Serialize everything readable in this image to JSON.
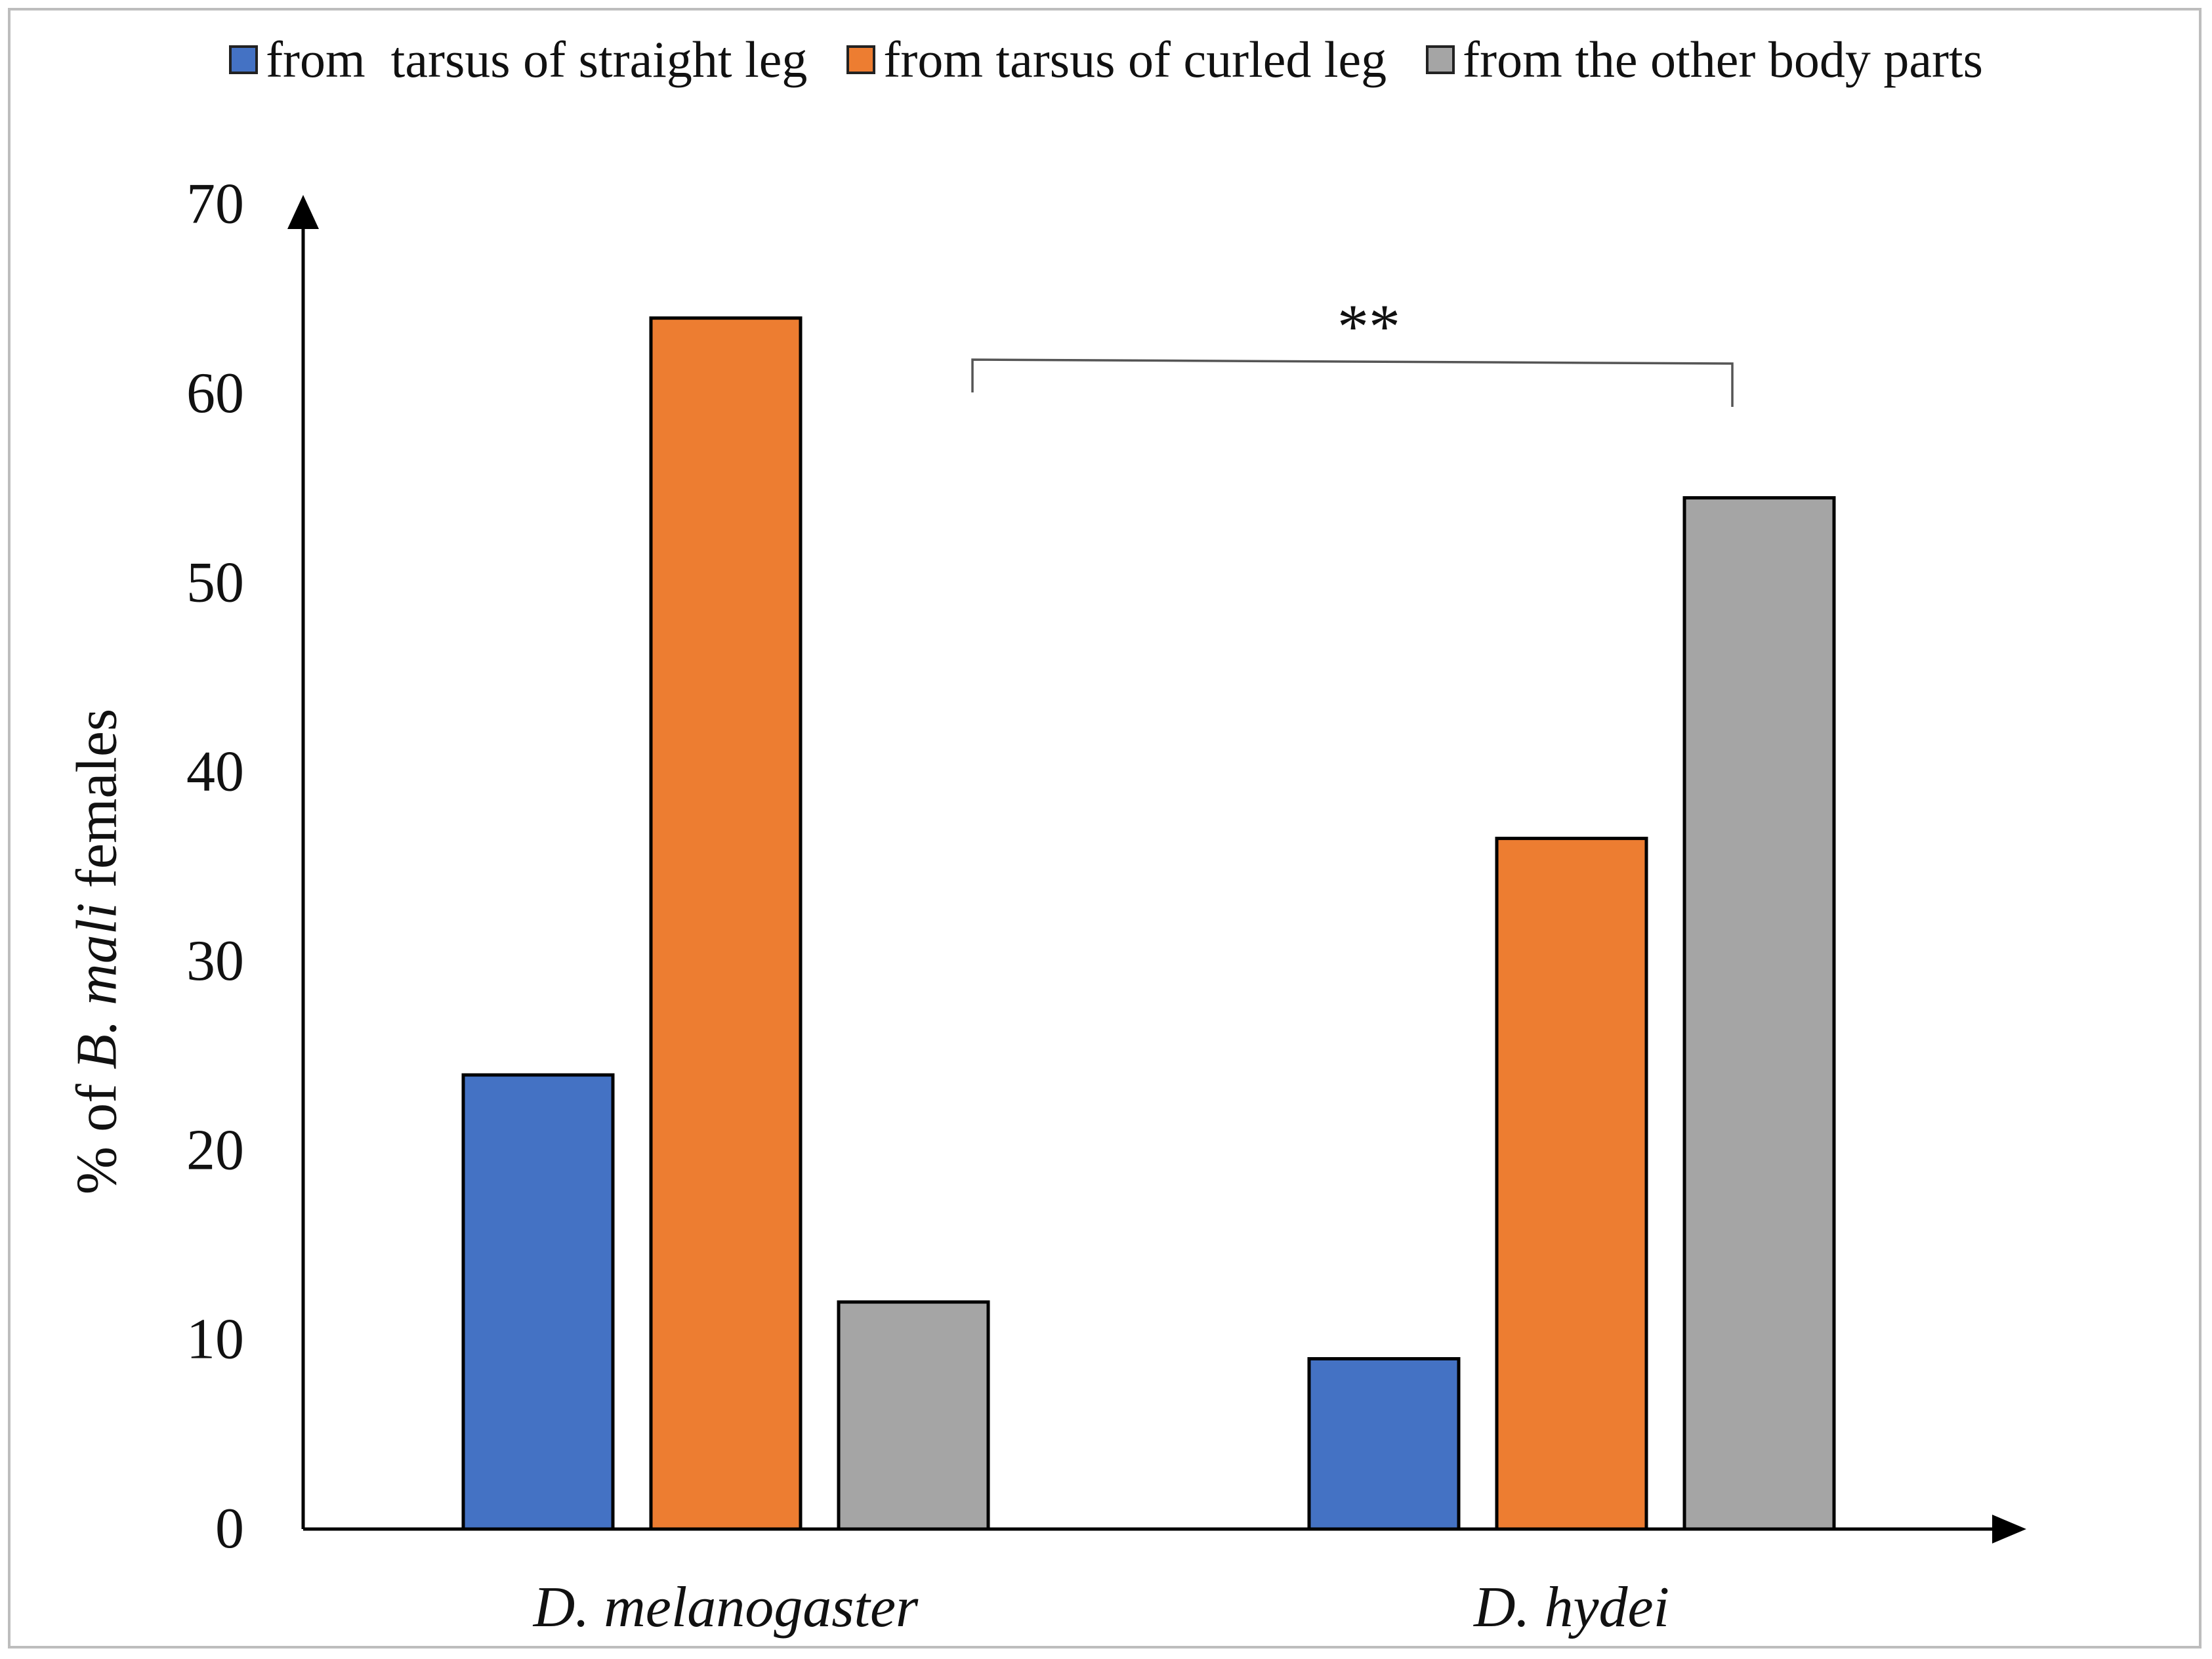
{
  "chart_data": {
    "type": "bar",
    "categories": [
      "D. melanogaster",
      "D. hydei"
    ],
    "series": [
      {
        "name": "from  tarsus of straight leg",
        "color": "#4472C4",
        "values": [
          24,
          9
        ]
      },
      {
        "name": "from tarsus of curled leg",
        "color": "#ED7D31",
        "values": [
          64,
          36.5
        ]
      },
      {
        "name": "from the other body parts",
        "color": "#A5A5A5",
        "values": [
          12,
          54.5
        ]
      }
    ],
    "ylabel_parts": {
      "prefix": "% of ",
      "species": "B. mali",
      "suffix": " females"
    },
    "ylim": [
      0,
      70
    ],
    "yticks": [
      "0",
      "10",
      "20",
      "30",
      "40",
      "50",
      "60",
      "70"
    ],
    "significance": {
      "label": "**",
      "compares": "D. melanogaster vs D. hydei"
    },
    "legend_position": "top"
  }
}
